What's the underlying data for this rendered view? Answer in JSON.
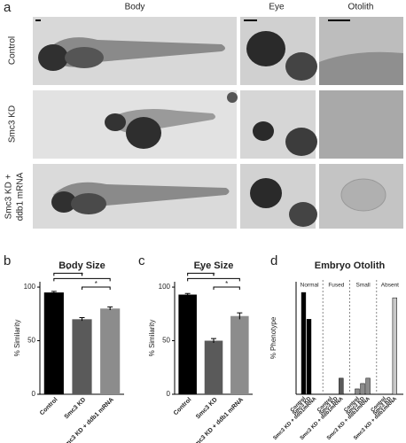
{
  "panel_a": {
    "label": "a",
    "columns": [
      "Body",
      "Eye",
      "Otolith"
    ],
    "rows": [
      [
        "Control"
      ],
      [
        "Smc3 KD"
      ],
      [
        "Smc3 KD +",
        "ddb1 mRNA"
      ]
    ]
  },
  "chart_data": [
    {
      "type": "bar",
      "panel_label": "b",
      "title": "Body Size",
      "y_label": "% Similarity",
      "categories": [
        "Control",
        "Smc3 KD",
        "Smc3 KD + ddb1 mRNA"
      ],
      "values": [
        95,
        70,
        80
      ],
      "errors": [
        1,
        1.5,
        1.5
      ],
      "colors": [
        "#000000",
        "#5a5a5a",
        "#8c8c8c"
      ],
      "ylim": [
        0,
        105
      ],
      "yticks": [
        0,
        50,
        100
      ],
      "significance": [
        "*",
        "*",
        "*"
      ]
    },
    {
      "type": "bar",
      "panel_label": "c",
      "title": "Eye Size",
      "y_label": "% Similarity",
      "categories": [
        "Control",
        "Smc3 KD",
        "Smc3 KD + ddb1 mRNA"
      ],
      "values": [
        93,
        50,
        73
      ],
      "errors": [
        1,
        2,
        3
      ],
      "colors": [
        "#000000",
        "#5a5a5a",
        "#8c8c8c"
      ],
      "ylim": [
        0,
        105
      ],
      "yticks": [
        0,
        50,
        100
      ],
      "significance": [
        "*",
        "*",
        "*"
      ]
    },
    {
      "type": "grouped_bar",
      "panel_label": "d",
      "title": "Embryo Otolith",
      "y_label": "% Phenotype",
      "categories": [
        "Control",
        "Smc3 KD",
        "Smc3 KD + ddb1mRNA"
      ],
      "series": [
        {
          "name": "Normal",
          "color": "#000000",
          "values": [
            95,
            70,
            0
          ]
        },
        {
          "name": "Fused",
          "color": "#5a5a5a",
          "values": [
            0,
            0,
            15
          ]
        },
        {
          "name": "Small",
          "color": "#8c8c8c",
          "values": [
            5,
            10,
            15
          ]
        },
        {
          "name": "Absent",
          "color": "#c8c8c8",
          "values": [
            0,
            0,
            90
          ]
        }
      ],
      "ylim": [
        0,
        105
      ]
    }
  ]
}
